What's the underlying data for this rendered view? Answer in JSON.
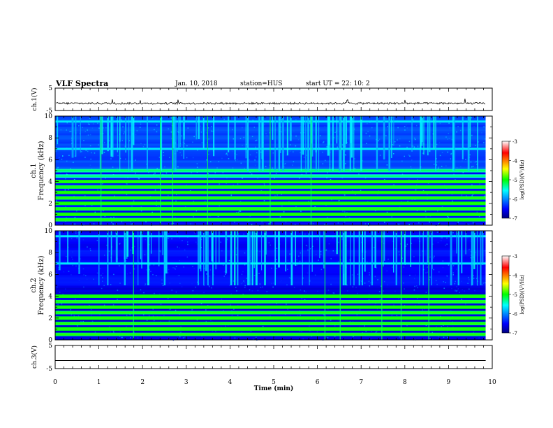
{
  "header": {
    "title": "VLF Spectra",
    "date": "Jan. 10, 2018",
    "station": "station=HUS",
    "start": "start  UT =  22: 10: 2"
  },
  "chart_data": [
    {
      "type": "line",
      "name": "ch1-waveform",
      "ylabel": "ch.1(V)",
      "ylim": [
        -5,
        5
      ],
      "yticks": [
        "5",
        "-5"
      ],
      "xlim": [
        0,
        10
      ],
      "baseline": -1.8,
      "note_values": {
        "level_V": -1.8
      }
    },
    {
      "type": "heatmap",
      "name": "ch1-spectrogram",
      "ylabel": [
        "ch.1",
        "Frequency (kHz)"
      ],
      "xlim": [
        0,
        10
      ],
      "ylim": [
        0,
        10
      ],
      "yticks": [
        "0",
        "2",
        "4",
        "6",
        "8",
        "10"
      ],
      "data_extent_min": 9.85,
      "bands_kHz": [
        0.5,
        1.0,
        1.5,
        2.0,
        2.5,
        3.0,
        3.5,
        4.0,
        4.5,
        5.0
      ],
      "lines_kHz": [
        7.0,
        9.5
      ],
      "colorbar": {
        "label": "log(PSD)(V²/Hz)",
        "ticks": [
          "-3",
          "-4",
          "-5",
          "-6",
          "-7"
        ],
        "range": [
          -7,
          -3
        ]
      }
    },
    {
      "type": "heatmap",
      "name": "ch2-spectrogram",
      "ylabel": [
        "ch.2",
        "Frequency (kHz)"
      ],
      "xlim": [
        0,
        10
      ],
      "ylim": [
        0,
        10
      ],
      "yticks": [
        "0",
        "2",
        "4",
        "6",
        "8",
        "10"
      ],
      "data_extent_min": 9.85,
      "bands_kHz": [
        0.5,
        1.0,
        1.5,
        2.0,
        2.5,
        3.0,
        3.5,
        4.0
      ],
      "lines_kHz": [
        7.0,
        9.5
      ],
      "colorbar": {
        "label": "log(PSD)(V²/Hz)",
        "ticks": [
          "-3",
          "-4",
          "-5",
          "-6",
          "-7"
        ],
        "range": [
          -7,
          -3
        ]
      }
    },
    {
      "type": "line",
      "name": "ch3-waveform",
      "ylabel": "ch.3(V)",
      "ylim": [
        -5,
        5
      ],
      "yticks": [
        "5",
        "-5"
      ],
      "xlim": [
        0,
        10
      ],
      "baseline": -1.5
    }
  ],
  "xaxis": {
    "label": "Time (min)",
    "ticks": [
      "0",
      "1",
      "2",
      "3",
      "4",
      "5",
      "6",
      "7",
      "8",
      "9",
      "10"
    ]
  }
}
